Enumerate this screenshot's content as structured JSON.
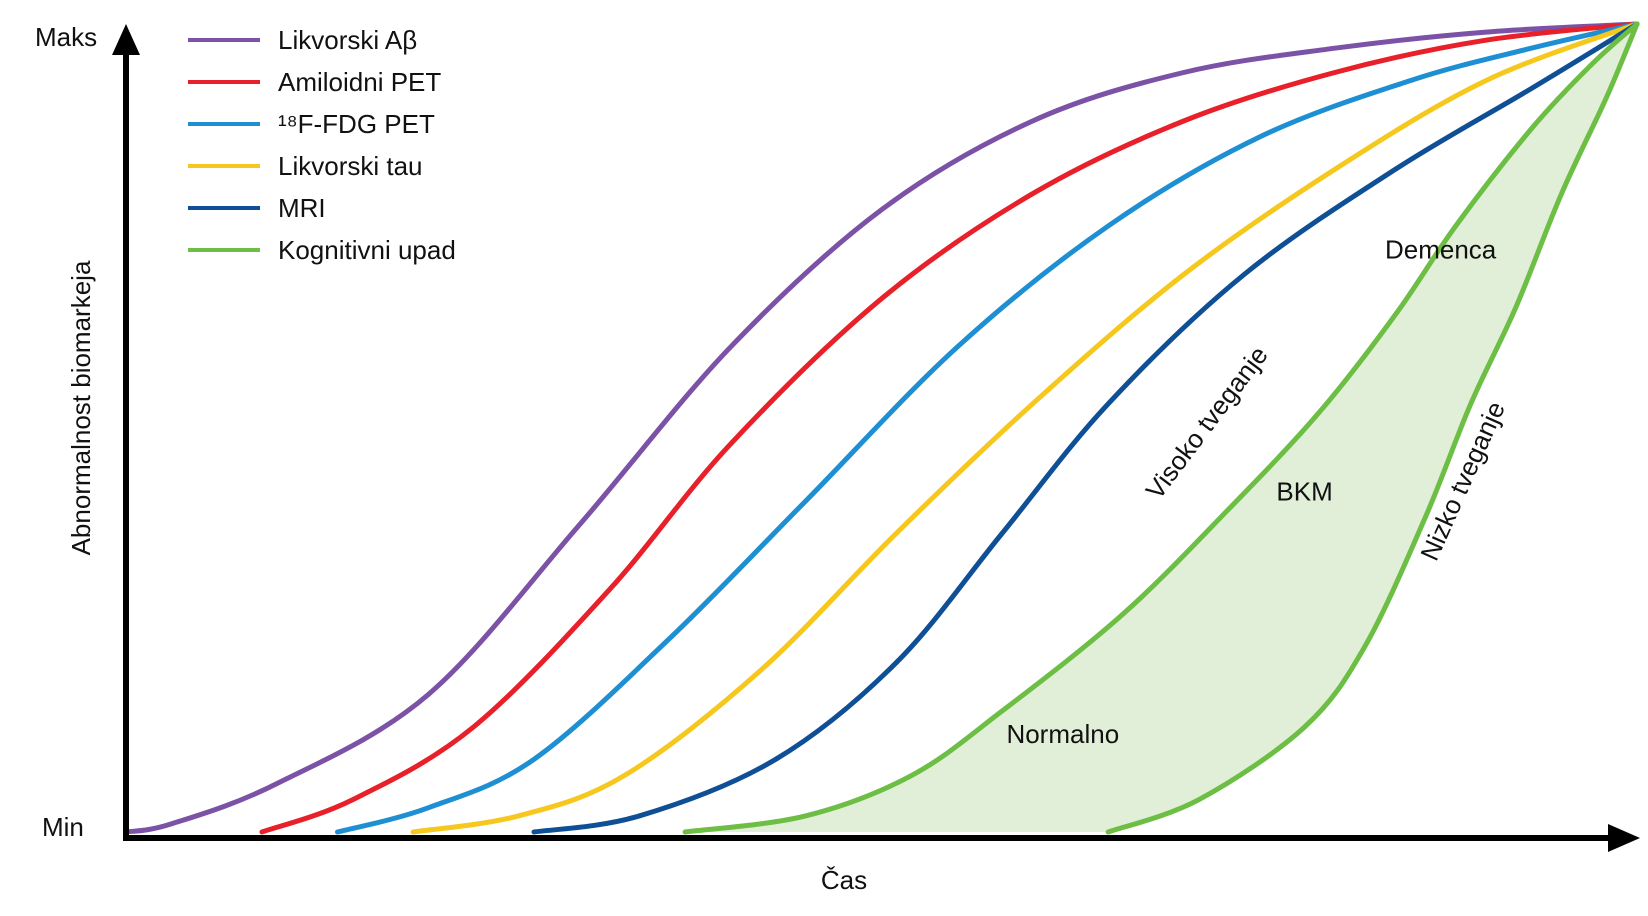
{
  "chart_data": {
    "type": "line",
    "title": "",
    "xlabel": "Čas",
    "ylabel": "Abnormalnost biomarkeja",
    "y_ticks": {
      "max": "Maks",
      "min": "Min"
    },
    "xlim": [
      0,
      1
    ],
    "ylim": [
      0,
      1
    ],
    "legend_position": "top-left",
    "grid": false,
    "series": [
      {
        "name": "Likvorski Aβ",
        "color": "#7B52A6",
        "points": [
          [
            0,
            0
          ],
          [
            0.03,
            0.01
          ],
          [
            0.1,
            0.06
          ],
          [
            0.2,
            0.17
          ],
          [
            0.3,
            0.38
          ],
          [
            0.4,
            0.6
          ],
          [
            0.5,
            0.77
          ],
          [
            0.6,
            0.88
          ],
          [
            0.7,
            0.94
          ],
          [
            0.8,
            0.97
          ],
          [
            0.9,
            0.99
          ],
          [
            1,
            1
          ]
        ]
      },
      {
        "name": "Amiloidni PET",
        "color": "#E8202A",
        "points": [
          [
            0.09,
            0
          ],
          [
            0.15,
            0.04
          ],
          [
            0.23,
            0.13
          ],
          [
            0.32,
            0.3
          ],
          [
            0.4,
            0.48
          ],
          [
            0.5,
            0.66
          ],
          [
            0.6,
            0.79
          ],
          [
            0.7,
            0.88
          ],
          [
            0.8,
            0.94
          ],
          [
            0.9,
            0.98
          ],
          [
            1,
            1
          ]
        ]
      },
      {
        "name": "¹⁸F-FDG PET",
        "color": "#1E8FD2",
        "points": [
          [
            0.14,
            0
          ],
          [
            0.2,
            0.03
          ],
          [
            0.27,
            0.09
          ],
          [
            0.36,
            0.24
          ],
          [
            0.45,
            0.41
          ],
          [
            0.55,
            0.6
          ],
          [
            0.65,
            0.75
          ],
          [
            0.75,
            0.86
          ],
          [
            0.85,
            0.93
          ],
          [
            0.93,
            0.97
          ],
          [
            1,
            1
          ]
        ]
      },
      {
        "name": "Likvorski tau",
        "color": "#F6C81E",
        "points": [
          [
            0.19,
            0
          ],
          [
            0.26,
            0.02
          ],
          [
            0.33,
            0.07
          ],
          [
            0.42,
            0.2
          ],
          [
            0.51,
            0.37
          ],
          [
            0.6,
            0.53
          ],
          [
            0.7,
            0.69
          ],
          [
            0.8,
            0.82
          ],
          [
            0.9,
            0.93
          ],
          [
            1,
            1
          ]
        ]
      },
      {
        "name": "MRI",
        "color": "#0E4F96",
        "points": [
          [
            0.27,
            0
          ],
          [
            0.34,
            0.02
          ],
          [
            0.43,
            0.09
          ],
          [
            0.51,
            0.21
          ],
          [
            0.58,
            0.37
          ],
          [
            0.65,
            0.53
          ],
          [
            0.74,
            0.69
          ],
          [
            0.84,
            0.82
          ],
          [
            0.93,
            0.92
          ],
          [
            1,
            1
          ]
        ]
      },
      {
        "name": "Kognitivni upad",
        "color": "#6DBE45",
        "points": [
          [
            0.37,
            0
          ],
          [
            0.45,
            0.02
          ],
          [
            0.52,
            0.07
          ],
          [
            0.58,
            0.15
          ],
          [
            0.66,
            0.27
          ],
          [
            0.73,
            0.4
          ],
          [
            0.79,
            0.52
          ],
          [
            0.84,
            0.64
          ],
          [
            0.88,
            0.75
          ],
          [
            0.93,
            0.87
          ],
          [
            0.97,
            0.95
          ],
          [
            1,
            1
          ]
        ]
      }
    ],
    "low_risk_curve": {
      "color": "#6DBE45",
      "points": [
        [
          0.65,
          0
        ],
        [
          0.71,
          0.04
        ],
        [
          0.78,
          0.13
        ],
        [
          0.82,
          0.23
        ],
        [
          0.86,
          0.39
        ],
        [
          0.89,
          0.53
        ],
        [
          0.92,
          0.65
        ],
        [
          0.95,
          0.79
        ],
        [
          0.98,
          0.91
        ],
        [
          1,
          1
        ]
      ]
    },
    "shaded_region_color": "#E2EFD8",
    "annotations": [
      {
        "text": "Normalno",
        "x": 0.62,
        "y": 0.11,
        "rotate": 0
      },
      {
        "text": "BKM",
        "x": 0.78,
        "y": 0.41,
        "rotate": 0
      },
      {
        "text": "Demenca",
        "x": 0.87,
        "y": 0.71,
        "rotate": 0
      },
      {
        "text": "Visoko tveganje",
        "x": 0.72,
        "y": 0.5,
        "rotate": -53
      },
      {
        "text": "Nizko tveganje",
        "x": 0.89,
        "y": 0.43,
        "rotate": -66
      }
    ]
  }
}
